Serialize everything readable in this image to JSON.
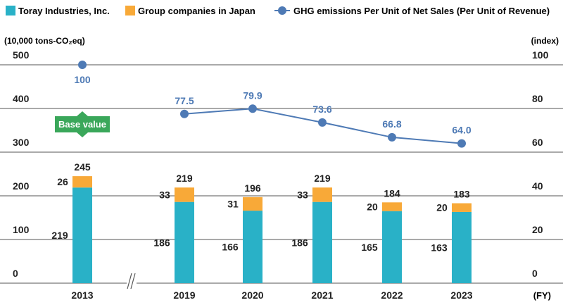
{
  "colors": {
    "toray": "#29b1c7",
    "group": "#f8a938",
    "line": "#4e7ab5",
    "line_label": "#4e7ab5",
    "badge": "#3aa75a",
    "text": "#222222",
    "grid": "#555555"
  },
  "chart_data": {
    "type": "bar",
    "stacked": true,
    "categories": [
      "2013",
      "2019",
      "2020",
      "2021",
      "2022",
      "2023"
    ],
    "series": [
      {
        "name": "Toray Industries, Inc.",
        "values": [
          219,
          186,
          166,
          186,
          165,
          163
        ]
      },
      {
        "name": "Group companies in Japan",
        "values": [
          26,
          33,
          31,
          33,
          20,
          20
        ]
      }
    ],
    "totals": [
      245,
      219,
      196,
      219,
      184,
      183
    ],
    "line_series": {
      "name": "GHG emissions Per Unit of Net Sales (Per Unit of Revenue)",
      "values": [
        100,
        77.5,
        79.9,
        73.6,
        66.8,
        64.0
      ],
      "labels": [
        "100",
        "77.5",
        "79.9",
        "73.6",
        "66.8",
        "64.0"
      ],
      "connected_from_index": 1
    },
    "ylabel_left": "(10,000 tons-CO₂eq)",
    "ylabel_right": "(index)",
    "xlabel": "(FY)",
    "ylim_left": [
      0,
      500
    ],
    "ylim_right": [
      0,
      100
    ],
    "yticks_left": [
      0,
      100,
      200,
      300,
      400,
      500
    ],
    "yticks_right": [
      0,
      20,
      40,
      60,
      80,
      100
    ],
    "legend": [
      "Toray Industries, Inc.",
      "Group companies in Japan",
      "GHG emissions Per Unit of Net Sales (Per Unit of Revenue)"
    ],
    "annotation": "Base value",
    "axis_break_between": [
      "2013",
      "2019"
    ]
  }
}
